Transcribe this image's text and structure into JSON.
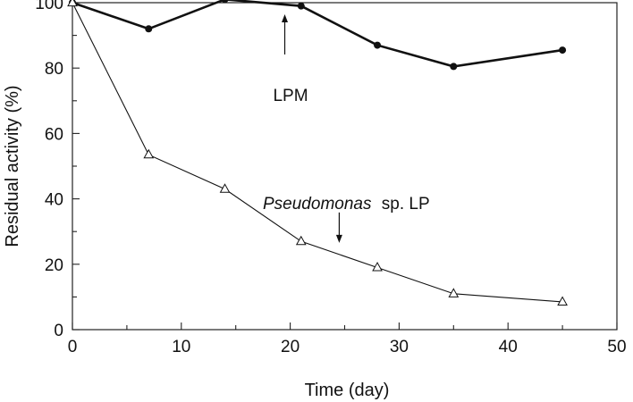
{
  "chart_data": {
    "type": "line",
    "xlabel": "Time (day)",
    "ylabel": "Residual activity (%)",
    "xlim": [
      0,
      50
    ],
    "ylim": [
      0,
      100
    ],
    "xticks": [
      0,
      10,
      20,
      30,
      40,
      50
    ],
    "yticks": [
      0,
      20,
      40,
      60,
      80,
      100
    ],
    "grid": false,
    "legend": "none",
    "series": [
      {
        "name": "LPM",
        "marker": "filled-circle",
        "color": "#111111",
        "x": [
          0,
          7,
          14,
          21,
          28,
          35,
          45
        ],
        "y": [
          100,
          92,
          101,
          99,
          87,
          80.5,
          85.5
        ]
      },
      {
        "name": "Pseudomonas sp. LP",
        "marker": "open-triangle",
        "color": "#111111",
        "x": [
          0,
          7,
          14,
          21,
          28,
          35,
          45
        ],
        "y": [
          100,
          53.5,
          43,
          27,
          19,
          11,
          8.5
        ]
      }
    ],
    "annotations": [
      {
        "label": "LPM",
        "series": "LPM",
        "arrow_at": {
          "x": 19.5,
          "y": 97
        }
      },
      {
        "label_italic": "Pseudomonas",
        "label_rest": "sp. LP",
        "series": "Pseudomonas sp. LP",
        "arrow_at": {
          "x": 24.5,
          "y": 26
        }
      }
    ]
  }
}
